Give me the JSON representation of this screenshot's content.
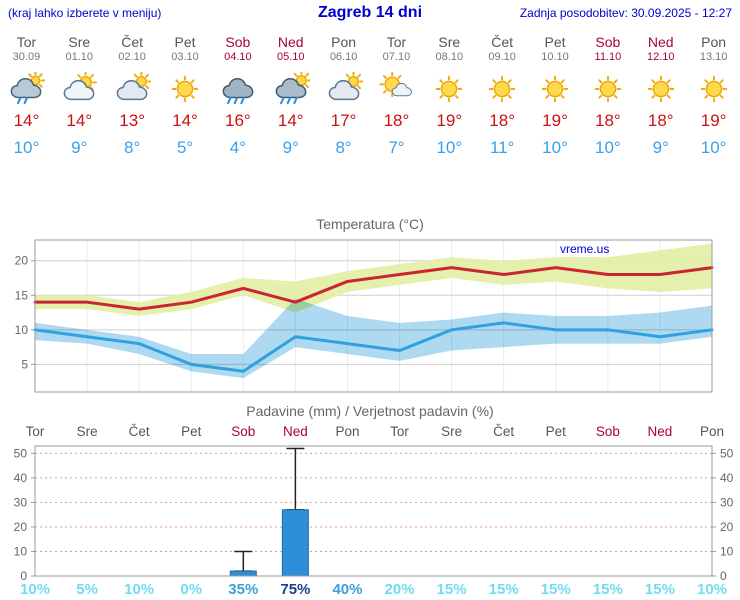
{
  "header": {
    "menu_hint": "(kraj lahko izberete v meniju)",
    "title": "Zagreb 14 dni",
    "last_update": "Zadnja posodobitev: 30.09.2025 - 12:27"
  },
  "colors": {
    "accent_blue": "#0000cc",
    "weekend": "#aa0044",
    "weekday": "#555555",
    "temp_max": "#cc1111",
    "temp_min": "#3aa0e8",
    "bar_fill": "#2e8fd8",
    "bar_stroke": "#1a6cae",
    "prob_light": "#6fdcf0",
    "prob_medium": "#3f9fd8",
    "prob_dark": "#1c3f8f"
  },
  "days": [
    {
      "name": "Tor",
      "date": "30.09",
      "icon": "showers",
      "tmax": "14°",
      "tmin": "10°",
      "weekend": false
    },
    {
      "name": "Sre",
      "date": "01.10",
      "icon": "partly-cloudy",
      "tmax": "14°",
      "tmin": "9°",
      "weekend": false
    },
    {
      "name": "Čet",
      "date": "02.10",
      "icon": "mostly-cloudy",
      "tmax": "13°",
      "tmin": "8°",
      "weekend": false
    },
    {
      "name": "Pet",
      "date": "03.10",
      "icon": "sunny",
      "tmax": "14°",
      "tmin": "5°",
      "weekend": false
    },
    {
      "name": "Sob",
      "date": "04.10",
      "icon": "rain",
      "tmax": "16°",
      "tmin": "4°",
      "weekend": true
    },
    {
      "name": "Ned",
      "date": "05.10",
      "icon": "rain-sun",
      "tmax": "14°",
      "tmin": "9°",
      "weekend": true
    },
    {
      "name": "Pon",
      "date": "06.10",
      "icon": "mostly-cloudy",
      "tmax": "17°",
      "tmin": "8°",
      "weekend": false
    },
    {
      "name": "Tor",
      "date": "07.10",
      "icon": "partly-sunny",
      "tmax": "18°",
      "tmin": "7°",
      "weekend": false
    },
    {
      "name": "Sre",
      "date": "08.10",
      "icon": "sunny",
      "tmax": "19°",
      "tmin": "10°",
      "weekend": false
    },
    {
      "name": "Čet",
      "date": "09.10",
      "icon": "sunny",
      "tmax": "18°",
      "tmin": "11°",
      "weekend": false
    },
    {
      "name": "Pet",
      "date": "10.10",
      "icon": "sunny",
      "tmax": "19°",
      "tmin": "10°",
      "weekend": false
    },
    {
      "name": "Sob",
      "date": "11.10",
      "icon": "sunny",
      "tmax": "18°",
      "tmin": "10°",
      "weekend": true
    },
    {
      "name": "Ned",
      "date": "12.10",
      "icon": "sunny",
      "tmax": "18°",
      "tmin": "9°",
      "weekend": true
    },
    {
      "name": "Pon",
      "date": "13.10",
      "icon": "sunny",
      "tmax": "19°",
      "tmin": "10°",
      "weekend": false
    }
  ],
  "chart_data": [
    {
      "type": "area",
      "title": "Temperatura (°C)",
      "watermark": "vreme.us",
      "x_labels": [
        "Tor",
        "Sre",
        "Čet",
        "Pet",
        "Sob",
        "Ned",
        "Pon",
        "Tor",
        "Sre",
        "Čet",
        "Pet",
        "Sob",
        "Ned",
        "Pon"
      ],
      "ylim": [
        1,
        23
      ],
      "yticks": [
        5,
        10,
        15,
        20
      ],
      "grid": true,
      "colors": {
        "max_band": "#e3efa6",
        "min_band": "#9fd4ee",
        "max_line": "#cc2433",
        "min_line": "#2fa0e0"
      },
      "series": [
        {
          "name": "max",
          "values": [
            14,
            14,
            13,
            14,
            16,
            14,
            17,
            18,
            19,
            18,
            19,
            18,
            18,
            19
          ]
        },
        {
          "name": "max_band_hi",
          "values": [
            15,
            15,
            14,
            15.5,
            17.5,
            17,
            18.5,
            19.5,
            20.5,
            20,
            20.5,
            20.5,
            21.5,
            22.5
          ]
        },
        {
          "name": "max_band_lo",
          "values": [
            13,
            13,
            12,
            13,
            15,
            12.5,
            15.5,
            16.5,
            17.5,
            16.5,
            17,
            16,
            15.5,
            16
          ]
        },
        {
          "name": "min",
          "values": [
            10,
            9,
            8,
            5,
            4,
            9,
            8,
            7,
            10,
            11,
            10,
            10,
            9,
            10
          ]
        },
        {
          "name": "min_band_hi",
          "values": [
            11,
            10,
            9,
            6.5,
            6.5,
            14.5,
            12,
            11,
            11.5,
            12.5,
            12,
            12,
            12.5,
            13.5
          ]
        },
        {
          "name": "min_band_lo",
          "values": [
            8.5,
            8,
            6.5,
            4,
            3,
            7.5,
            6.5,
            5.5,
            7,
            7.5,
            8,
            8,
            8,
            9
          ]
        }
      ]
    },
    {
      "type": "bar",
      "title": "Padavine (mm) / Verjetnost padavin (%)",
      "categories": [
        "Tor",
        "Sre",
        "Čet",
        "Pet",
        "Sob",
        "Ned",
        "Pon",
        "Tor",
        "Sre",
        "Čet",
        "Pet",
        "Sob",
        "Ned",
        "Pon"
      ],
      "weekend_flags": [
        false,
        false,
        false,
        false,
        true,
        true,
        false,
        false,
        false,
        false,
        false,
        true,
        true,
        false
      ],
      "precip_mm": [
        0,
        0,
        0,
        0,
        2,
        27,
        0,
        0,
        0,
        0,
        0,
        0,
        0,
        0
      ],
      "precip_max_mm": [
        0,
        0,
        0,
        0,
        10,
        52,
        0,
        0,
        0,
        0,
        0,
        0,
        0,
        0
      ],
      "probability_pct": [
        10,
        5,
        10,
        0,
        35,
        75,
        40,
        20,
        15,
        15,
        15,
        15,
        15,
        10
      ],
      "ylim": [
        0,
        53
      ],
      "yticks": [
        0,
        10,
        20,
        30,
        40,
        50
      ]
    }
  ]
}
